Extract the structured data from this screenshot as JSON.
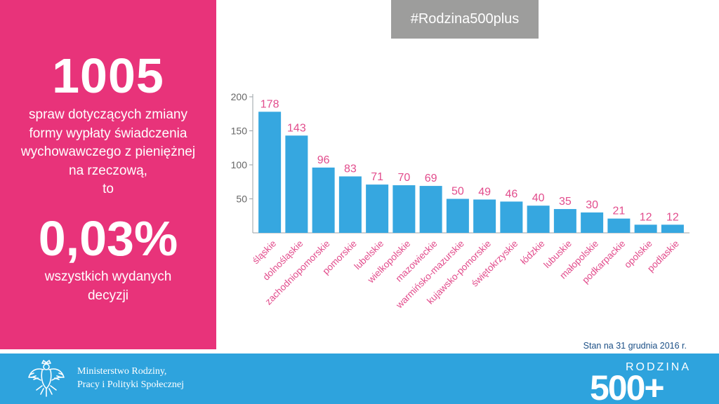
{
  "left_panel": {
    "big_number": "1005",
    "description_lines": [
      "spraw dotyczących zmiany",
      "formy wypłaty świadczenia",
      "wychowawczego z pieniężnej",
      "na rzeczową,",
      "to"
    ],
    "percent": "0,03%",
    "description2_lines": [
      "wszystkich wydanych",
      "decyzji"
    ]
  },
  "hashtag": "#Rodzina500plus",
  "stan": "Stan na 31 grudnia 2016 r.",
  "footer": {
    "ministry_lines": [
      "Ministerstwo Rodziny,",
      "Pracy i Polityki Społecznej"
    ],
    "logo_word": "RODZINA",
    "logo_number": "500+"
  },
  "icons": {
    "emblem": "polish-eagle-emblem-icon"
  },
  "colors": {
    "pink": "#e8337a",
    "bar_blue": "#36a7e0",
    "footer_blue": "#2ea3dd",
    "gray": "#9d9d9c",
    "label_pink": "#e24c8c"
  },
  "chart_data": {
    "type": "bar",
    "categories": [
      "śląskie",
      "dolnośląskie",
      "zachodniopomorskie",
      "pomorskie",
      "lubelskie",
      "wielkopolskie",
      "mazowieckie",
      "warmińsko-mazurskie",
      "kujawsko-pomorskie",
      "świętokrzyskie",
      "łódzkie",
      "lubuskie",
      "małopolskie",
      "podkarpackie",
      "opolskie",
      "podlaskie"
    ],
    "values": [
      178,
      143,
      96,
      83,
      71,
      70,
      69,
      50,
      49,
      46,
      40,
      35,
      30,
      21,
      12,
      12
    ],
    "yticks": [
      50,
      100,
      150,
      200
    ],
    "ylim": [
      0,
      200
    ],
    "grid": false,
    "title": "",
    "xlabel": "",
    "ylabel": ""
  }
}
